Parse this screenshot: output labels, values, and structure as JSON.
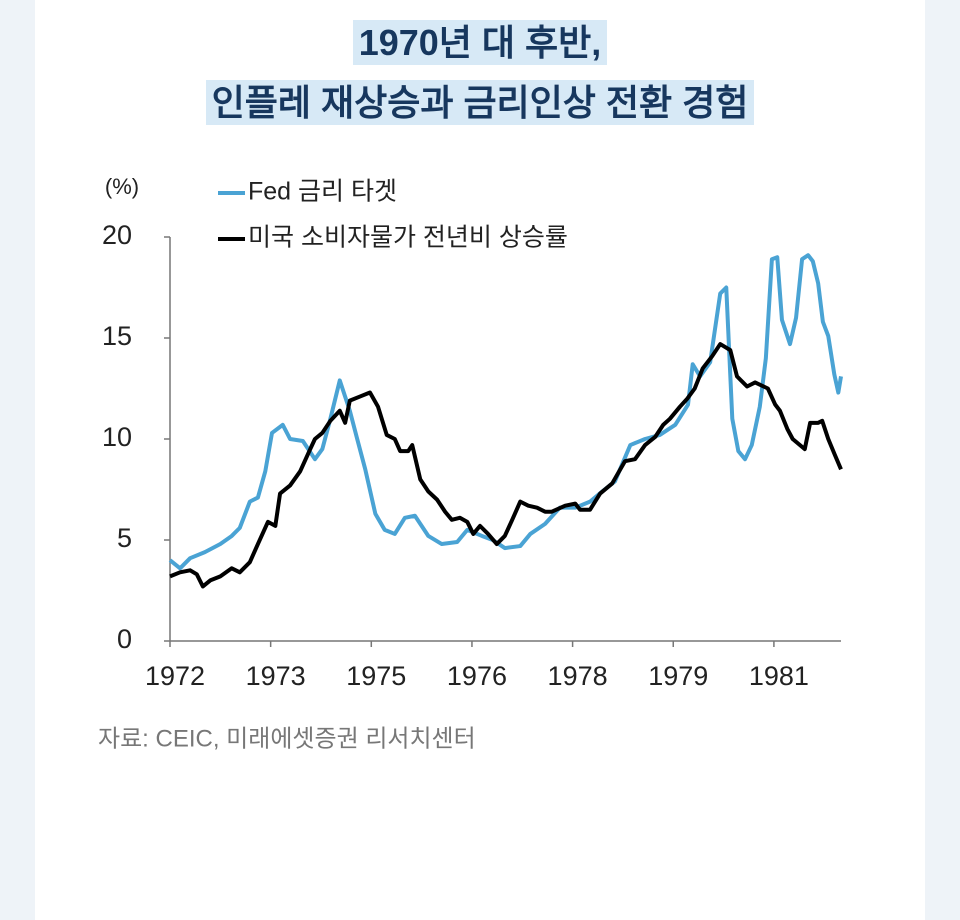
{
  "chart_data": {
    "type": "line",
    "title": [
      "1970년 대 후반,",
      "인플레 재상승과 금리인상 전환 경험"
    ],
    "y_unit_label": "(%)",
    "source": "자료: CEIC, 미래에셋증권 리서치센터",
    "xlim": [
      1972,
      1982
    ],
    "xticks": [
      1972,
      {
        "value": 1973.5,
        "label": "1973"
      },
      1975,
      {
        "value": 1976.5,
        "label": "1976"
      },
      1978,
      {
        "value": 1979.5,
        "label": "1979"
      },
      1981
    ],
    "ylim": [
      0,
      20
    ],
    "yticks": [
      0,
      5,
      10,
      15,
      20
    ],
    "series": [
      {
        "name": "Fed 금리 타겟",
        "color": "#4aa3d4",
        "x": [
          1972.0,
          1972.15,
          1972.3,
          1972.52,
          1972.75,
          1972.92,
          1973.04,
          1973.19,
          1973.31,
          1973.42,
          1973.52,
          1973.68,
          1973.79,
          1973.98,
          1974.16,
          1974.27,
          1974.39,
          1974.53,
          1974.68,
          1974.79,
          1974.91,
          1975.06,
          1975.2,
          1975.35,
          1975.5,
          1975.65,
          1975.85,
          1976.05,
          1976.28,
          1976.43,
          1976.65,
          1976.81,
          1976.99,
          1977.22,
          1977.37,
          1977.59,
          1977.81,
          1978.04,
          1978.26,
          1978.44,
          1978.63,
          1978.86,
          1979.08,
          1979.3,
          1979.53,
          1979.72,
          1979.79,
          1979.9,
          1980.05,
          1980.2,
          1980.29,
          1980.38,
          1980.47,
          1980.57,
          1980.67,
          1980.79,
          1980.88,
          1980.97,
          1981.05,
          1981.12,
          1981.24,
          1981.33,
          1981.42,
          1981.51,
          1981.58,
          1981.66,
          1981.73,
          1981.81,
          1981.9,
          1981.96,
          1982.0
        ],
        "values": [
          4.0,
          3.6,
          4.1,
          4.4,
          4.8,
          5.2,
          5.6,
          6.9,
          7.1,
          8.4,
          10.3,
          10.7,
          10.0,
          9.9,
          9.0,
          9.5,
          11.0,
          12.9,
          11.4,
          10.0,
          8.5,
          6.3,
          5.5,
          5.3,
          6.1,
          6.2,
          5.2,
          4.8,
          4.9,
          5.5,
          5.2,
          5.0,
          4.6,
          4.7,
          5.3,
          5.8,
          6.6,
          6.6,
          6.9,
          7.4,
          7.9,
          9.7,
          10.0,
          10.2,
          10.7,
          11.7,
          13.7,
          13.1,
          13.8,
          17.2,
          17.5,
          11.0,
          9.4,
          9.0,
          9.7,
          11.6,
          14.0,
          18.9,
          19.0,
          15.9,
          14.7,
          16.0,
          18.9,
          19.1,
          18.8,
          17.7,
          15.8,
          15.1,
          13.2,
          12.3,
          13.1
        ]
      },
      {
        "name": "미국 소비자물가 전년비 상승률",
        "color": "#000000",
        "x": [
          1972.0,
          1972.15,
          1972.3,
          1972.4,
          1972.49,
          1972.6,
          1972.75,
          1972.92,
          1973.04,
          1973.19,
          1973.31,
          1973.46,
          1973.57,
          1973.64,
          1973.79,
          1973.94,
          1974.09,
          1974.16,
          1974.27,
          1974.39,
          1974.53,
          1974.61,
          1974.68,
          1974.83,
          1974.98,
          1975.1,
          1975.23,
          1975.35,
          1975.43,
          1975.55,
          1975.61,
          1975.73,
          1975.85,
          1975.98,
          1976.1,
          1976.2,
          1976.32,
          1976.43,
          1976.52,
          1976.62,
          1976.74,
          1976.87,
          1976.99,
          1977.1,
          1977.22,
          1977.34,
          1977.47,
          1977.59,
          1977.69,
          1977.89,
          1978.04,
          1978.11,
          1978.26,
          1978.41,
          1978.59,
          1978.78,
          1978.93,
          1979.08,
          1979.23,
          1979.35,
          1979.45,
          1979.6,
          1979.71,
          1979.82,
          1979.94,
          1980.08,
          1980.2,
          1980.35,
          1980.45,
          1980.6,
          1980.72,
          1980.91,
          1981.02,
          1981.09,
          1981.2,
          1981.28,
          1981.46,
          1981.54,
          1981.66,
          1981.72,
          1981.81,
          1981.91,
          1982.0
        ],
        "values": [
          3.2,
          3.4,
          3.5,
          3.3,
          2.7,
          3.0,
          3.2,
          3.6,
          3.4,
          3.9,
          4.8,
          5.9,
          5.7,
          7.3,
          7.7,
          8.4,
          9.5,
          10.0,
          10.3,
          10.9,
          11.4,
          10.8,
          11.9,
          12.1,
          12.3,
          11.6,
          10.2,
          10.0,
          9.4,
          9.4,
          9.7,
          8.0,
          7.4,
          7.0,
          6.4,
          6.0,
          6.1,
          5.9,
          5.3,
          5.7,
          5.3,
          4.8,
          5.2,
          6.0,
          6.9,
          6.7,
          6.6,
          6.4,
          6.4,
          6.7,
          6.8,
          6.5,
          6.5,
          7.3,
          7.8,
          8.9,
          9.0,
          9.7,
          10.1,
          10.7,
          11.0,
          11.6,
          12.0,
          12.5,
          13.5,
          14.1,
          14.7,
          14.4,
          13.1,
          12.6,
          12.8,
          12.5,
          11.7,
          11.4,
          10.5,
          10.0,
          9.5,
          10.8,
          10.8,
          10.9,
          10.0,
          9.2,
          8.5
        ]
      }
    ]
  }
}
